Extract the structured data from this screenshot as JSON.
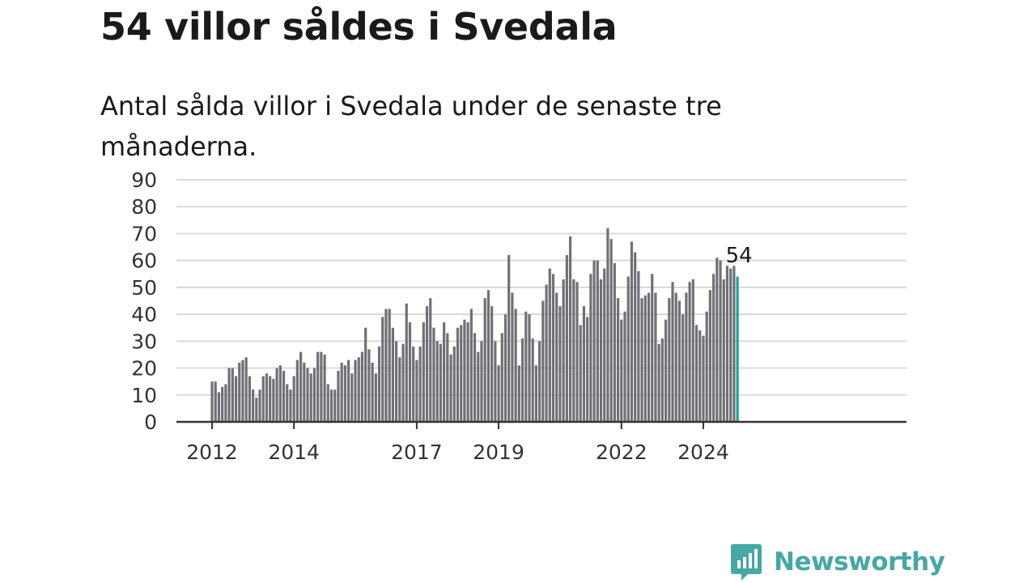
{
  "title": "54 villor såldes i Svedala",
  "subtitle": "Antal sålda villor i Svedala under de senaste tre månaderna.",
  "brand": {
    "name": "Newsworthy",
    "color": "#46a8a4",
    "icon": "newsworthy-logo-icon"
  },
  "colors": {
    "bar": "#717076",
    "highlight": "#1aa39a",
    "grid": "#d9d9d9",
    "axis": "#333333"
  },
  "chart_data": {
    "type": "bar",
    "ylim": [
      0,
      90
    ],
    "yticks": [
      0,
      10,
      20,
      30,
      40,
      50,
      60,
      70,
      80,
      90
    ],
    "xticks": [
      {
        "label": "2012",
        "index": 0
      },
      {
        "label": "2014",
        "index": 24
      },
      {
        "label": "2017",
        "index": 60
      },
      {
        "label": "2019",
        "index": 84
      },
      {
        "label": "2022",
        "index": 120
      },
      {
        "label": "2024",
        "index": 144
      }
    ],
    "start_month": "2012-01",
    "last_value_label": "54",
    "grid": true,
    "values": [
      15,
      15,
      11,
      13,
      14,
      20,
      20,
      17,
      22,
      23,
      24,
      17,
      12,
      9,
      12,
      17,
      18,
      17,
      16,
      20,
      21,
      19,
      14,
      12,
      17,
      23,
      26,
      22,
      20,
      18,
      20,
      26,
      26,
      25,
      14,
      12,
      12,
      19,
      22,
      21,
      23,
      18,
      23,
      24,
      26,
      35,
      27,
      22,
      18,
      28,
      39,
      42,
      42,
      35,
      30,
      24,
      29,
      44,
      37,
      28,
      23,
      28,
      37,
      43,
      46,
      35,
      30,
      29,
      37,
      33,
      25,
      28,
      35,
      36,
      38,
      37,
      42,
      33,
      26,
      30,
      46,
      49,
      43,
      30,
      21,
      33,
      40,
      62,
      48,
      42,
      21,
      31,
      41,
      40,
      31,
      21,
      30,
      45,
      51,
      57,
      55,
      48,
      43,
      53,
      62,
      69,
      53,
      52,
      36,
      43,
      39,
      55,
      60,
      60,
      53,
      57,
      72,
      68,
      59,
      46,
      38,
      41,
      54,
      67,
      63,
      56,
      46,
      47,
      48,
      55,
      48,
      29,
      31,
      38,
      46,
      52,
      48,
      45,
      40,
      48,
      52,
      53,
      36,
      34,
      32,
      41,
      49,
      55,
      61,
      60,
      53,
      58,
      57,
      58,
      54
    ]
  }
}
